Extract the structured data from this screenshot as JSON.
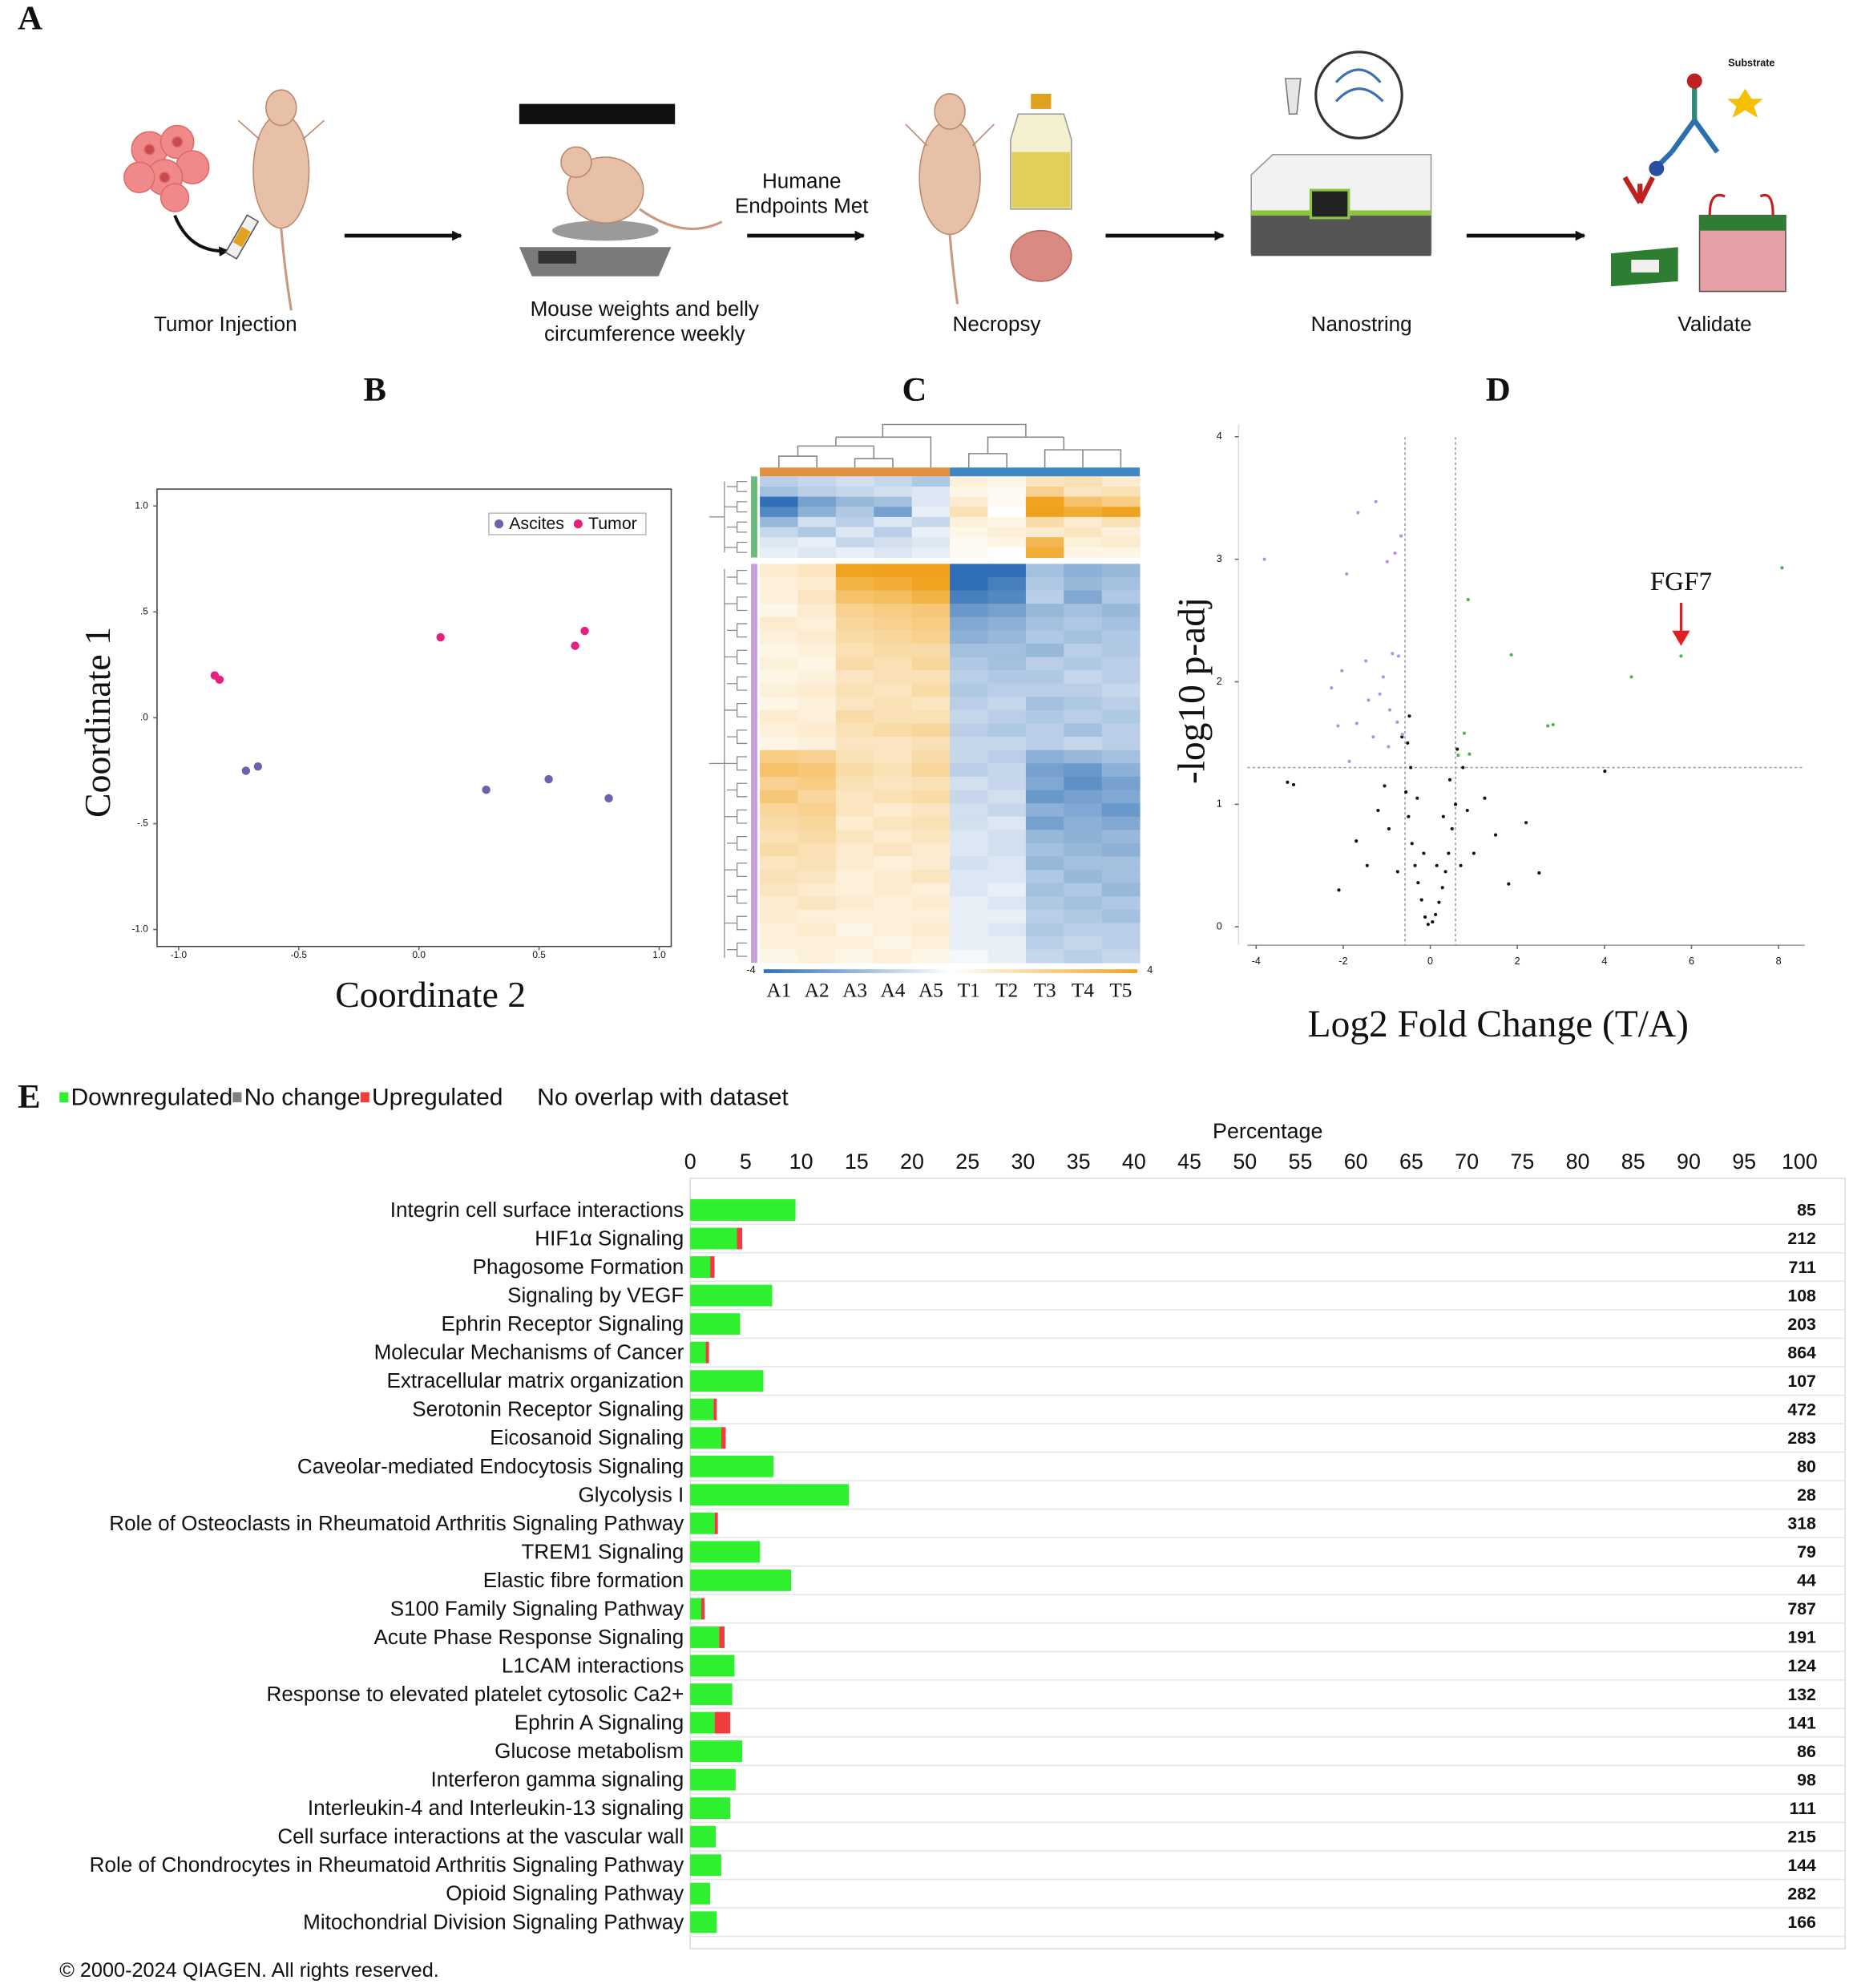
{
  "panel_labels": [
    "A",
    "B",
    "C",
    "D",
    "E"
  ],
  "workflow": {
    "steps": [
      [
        "Tumor Injection"
      ],
      [
        "Mouse weights and belly",
        "circumference weekly"
      ],
      [
        "Necropsy"
      ],
      [
        "Nanostring"
      ],
      [
        "Validate"
      ]
    ],
    "arrow_label": [
      "Humane",
      "Endpoints Met"
    ],
    "substrate_label": "Substrate"
  },
  "chart_data": [
    {
      "type": "scatter",
      "xlabel": "Coordinate 2",
      "ylabel": "Coordinate 1",
      "xlim": [
        -1.09,
        1.05
      ],
      "ylim": [
        -1.08,
        1.08
      ],
      "xticks": [
        {
          "value": -1.0,
          "label": "-1.0"
        },
        {
          "value": -0.5,
          "label": "-0.5"
        },
        {
          "value": 0.0,
          "label": "0.0"
        },
        {
          "value": 0.5,
          "label": "0.5"
        },
        {
          "value": 1.0,
          "label": "1.0"
        }
      ],
      "yticks": [
        {
          "value": 1.0,
          "label": "1.0"
        },
        {
          "value": 0.5,
          "label": ".5"
        },
        {
          "value": 0.0,
          "label": ".0"
        },
        {
          "value": -0.5,
          "label": "-.5"
        },
        {
          "value": -1.0,
          "label": "-1.0"
        }
      ],
      "frame": true,
      "legend": "upper right",
      "series": [
        {
          "name": "Ascites",
          "color": "#6f5fae",
          "x": [
            -0.72,
            -0.67,
            0.28,
            0.54,
            0.79
          ],
          "values": [
            -0.25,
            -0.23,
            -0.34,
            -0.29,
            -0.38
          ]
        },
        {
          "name": "Tumor",
          "color": "#e6207e",
          "x": [
            -0.85,
            -0.83,
            0.09,
            0.65,
            0.69
          ],
          "values": [
            0.2,
            0.18,
            0.38,
            0.34,
            0.41
          ]
        }
      ]
    },
    {
      "type": "heatmap",
      "column_groups": [
        {
          "color": "#df9040",
          "columns": [
            "A1",
            "A2",
            "A3",
            "A4",
            "A5"
          ]
        },
        {
          "color": "#3f86c4",
          "columns": [
            "T1",
            "T2",
            "T3",
            "T4",
            "T5"
          ]
        }
      ],
      "clim": [
        -4,
        4
      ],
      "cticks": [
        -4,
        4
      ],
      "colors": {
        "low": "#2f6fb5",
        "high": "#f0a21e"
      },
      "row_groups": [
        {
          "color": "#6dbb7c",
          "values": [
            [
              -0.6,
              -0.5,
              -0.4,
              -0.5,
              -0.7,
              0.3,
              0.2,
              0.5,
              0.6,
              0.4
            ],
            [
              -0.8,
              -0.6,
              -0.5,
              -0.4,
              -0.3,
              0.2,
              0.1,
              0.9,
              0.5,
              0.6
            ],
            [
              -2.0,
              -1.2,
              -0.9,
              -0.8,
              -0.3,
              0.4,
              0.1,
              1.8,
              1.2,
              1.0
            ],
            [
              -1.5,
              -1.0,
              -0.7,
              -1.2,
              -0.2,
              0.6,
              0.0,
              2.2,
              1.6,
              1.8
            ],
            [
              -0.9,
              -0.4,
              -0.6,
              -0.3,
              -0.5,
              0.3,
              0.2,
              0.7,
              0.4,
              0.6
            ],
            [
              -0.5,
              -0.7,
              -0.3,
              -0.6,
              -0.2,
              0.2,
              0.3,
              0.4,
              0.5,
              0.3
            ],
            [
              -0.3,
              -0.2,
              -0.5,
              -0.4,
              -0.3,
              0.1,
              0.2,
              1.4,
              0.3,
              0.4
            ],
            [
              -0.2,
              -0.3,
              -0.2,
              -0.3,
              -0.2,
              0.1,
              0.0,
              1.6,
              0.2,
              0.2
            ]
          ]
        },
        {
          "color": "#c7a0dc",
          "values": [
            [
              0.4,
              0.5,
              1.8,
              1.9,
              2.1,
              -2.2,
              -1.8,
              -0.8,
              -1.0,
              -0.9
            ],
            [
              0.3,
              0.4,
              1.5,
              1.6,
              1.8,
              -2.0,
              -1.6,
              -0.7,
              -0.9,
              -0.8
            ],
            [
              0.3,
              0.5,
              1.2,
              1.3,
              1.5,
              -1.6,
              -1.5,
              -0.6,
              -1.1,
              -0.7
            ],
            [
              0.2,
              0.4,
              0.9,
              1.0,
              1.1,
              -1.3,
              -1.2,
              -0.9,
              -0.8,
              -0.9
            ],
            [
              0.4,
              0.3,
              0.8,
              0.9,
              1.0,
              -1.1,
              -1.0,
              -0.8,
              -0.7,
              -0.8
            ],
            [
              0.3,
              0.4,
              0.7,
              0.8,
              0.9,
              -1.0,
              -0.9,
              -0.7,
              -0.8,
              -0.7
            ],
            [
              0.2,
              0.3,
              0.6,
              0.7,
              0.7,
              -0.8,
              -0.8,
              -0.9,
              -0.6,
              -0.7
            ],
            [
              0.3,
              0.2,
              0.7,
              0.6,
              0.8,
              -0.7,
              -0.8,
              -0.6,
              -0.7,
              -0.6
            ],
            [
              0.2,
              0.3,
              0.5,
              0.6,
              0.6,
              -0.6,
              -0.7,
              -0.7,
              -0.5,
              -0.6
            ],
            [
              0.3,
              0.4,
              0.6,
              0.5,
              0.7,
              -0.7,
              -0.6,
              -0.6,
              -0.6,
              -0.5
            ],
            [
              0.2,
              0.3,
              0.5,
              0.6,
              0.5,
              -0.6,
              -0.5,
              -0.8,
              -0.7,
              -0.6
            ],
            [
              0.4,
              0.3,
              0.7,
              0.6,
              0.6,
              -0.5,
              -0.6,
              -0.7,
              -0.6,
              -0.7
            ],
            [
              0.3,
              0.4,
              0.6,
              0.7,
              0.8,
              -0.6,
              -0.7,
              -0.6,
              -0.8,
              -0.6
            ],
            [
              0.2,
              0.3,
              0.5,
              0.5,
              0.6,
              -0.5,
              -0.5,
              -0.6,
              -0.5,
              -0.6
            ],
            [
              1.0,
              0.9,
              0.6,
              0.5,
              0.7,
              -0.5,
              -0.6,
              -1.0,
              -0.9,
              -0.8
            ],
            [
              1.2,
              1.1,
              0.7,
              0.6,
              0.8,
              -0.6,
              -0.5,
              -1.2,
              -1.3,
              -1.0
            ],
            [
              0.9,
              1.0,
              0.6,
              0.5,
              0.6,
              -0.4,
              -0.5,
              -1.1,
              -1.4,
              -1.2
            ],
            [
              1.1,
              0.8,
              0.5,
              0.6,
              0.7,
              -0.5,
              -0.4,
              -1.3,
              -1.2,
              -1.1
            ],
            [
              0.8,
              0.9,
              0.5,
              0.4,
              0.5,
              -0.4,
              -0.5,
              -1.0,
              -1.1,
              -1.3
            ],
            [
              0.7,
              0.8,
              0.4,
              0.5,
              0.6,
              -0.4,
              -0.3,
              -1.2,
              -1.0,
              -1.1
            ],
            [
              0.6,
              0.7,
              0.5,
              0.4,
              0.5,
              -0.3,
              -0.4,
              -0.9,
              -1.0,
              -0.9
            ],
            [
              0.7,
              0.6,
              0.4,
              0.5,
              0.4,
              -0.3,
              -0.4,
              -0.8,
              -0.9,
              -1.0
            ],
            [
              0.5,
              0.6,
              0.4,
              0.3,
              0.4,
              -0.4,
              -0.3,
              -0.9,
              -0.8,
              -0.8
            ],
            [
              0.6,
              0.5,
              0.3,
              0.4,
              0.5,
              -0.3,
              -0.3,
              -0.7,
              -0.9,
              -0.8
            ],
            [
              0.5,
              0.4,
              0.3,
              0.4,
              0.3,
              -0.3,
              -0.2,
              -0.8,
              -0.7,
              -0.9
            ],
            [
              0.4,
              0.5,
              0.4,
              0.3,
              0.4,
              -0.2,
              -0.3,
              -0.7,
              -0.8,
              -0.7
            ],
            [
              0.4,
              0.3,
              0.3,
              0.3,
              0.3,
              -0.2,
              -0.2,
              -0.6,
              -0.7,
              -0.8
            ],
            [
              0.3,
              0.4,
              0.2,
              0.3,
              0.4,
              -0.2,
              -0.3,
              -0.7,
              -0.6,
              -0.6
            ],
            [
              0.3,
              0.3,
              0.3,
              0.2,
              0.3,
              -0.2,
              -0.2,
              -0.6,
              -0.5,
              -0.6
            ],
            [
              0.2,
              0.3,
              0.2,
              0.3,
              0.2,
              -0.1,
              -0.2,
              -0.5,
              -0.6,
              -0.5
            ]
          ]
        }
      ]
    },
    {
      "type": "scatter",
      "xlabel": "Log2 Fold Change (T/A)",
      "ylabel": "-log10 p-adj",
      "xlim": [
        -4.2,
        8.6
      ],
      "ylim": [
        -0.15,
        4.1
      ],
      "xticks": [
        -4,
        -2,
        0,
        2,
        4,
        6,
        8
      ],
      "yticks": [
        0,
        1,
        2,
        3,
        4
      ],
      "frame": false,
      "xthresholds": [
        -0.58,
        0.58
      ],
      "ythresholds": [
        1.3
      ],
      "series": [
        {
          "color": "#111111",
          "x": [
            -0.05,
            0.05,
            0.12,
            -0.12,
            0.2,
            -0.2,
            0.28,
            -0.28,
            0.35,
            -0.35,
            0.42,
            -0.42,
            0.5,
            -0.5,
            0.58,
            -0.56,
            -0.45,
            -0.52,
            -0.48,
            -0.3,
            -0.15,
            0.15,
            0.3,
            0.45,
            0.7,
            0.85,
            1.0,
            1.25,
            1.5,
            1.8,
            2.2,
            0.75,
            -0.75,
            -0.95,
            -1.2,
            -1.45,
            -1.7,
            -2.1,
            -3.28,
            -3.14,
            4.01,
            2.5,
            -0.65,
            0.62,
            -1.05
          ],
          "values": [
            0.02,
            0.04,
            0.1,
            0.08,
            0.2,
            0.22,
            0.32,
            0.36,
            0.45,
            0.5,
            0.6,
            0.68,
            0.8,
            0.9,
            1.0,
            1.1,
            1.3,
            1.5,
            1.72,
            1.05,
            0.6,
            0.5,
            0.9,
            1.2,
            0.5,
            0.95,
            0.6,
            1.05,
            0.75,
            0.35,
            0.85,
            1.3,
            0.45,
            0.8,
            0.95,
            0.5,
            0.7,
            0.3,
            1.18,
            1.16,
            1.27,
            0.44,
            1.55,
            1.45,
            1.15
          ]
        },
        {
          "color": "#b98ee0",
          "x": [
            -3.81,
            -1.66,
            -1.25,
            -1.92,
            -0.99,
            -0.67,
            -0.81,
            -2.27,
            -2.03,
            -1.48,
            -0.87,
            -0.73,
            -1.16,
            -0.93,
            -0.76,
            -2.12,
            -1.69,
            -1.42,
            -1.08,
            -0.64,
            -1.86,
            -0.96,
            -1.31
          ],
          "values": [
            3.0,
            3.38,
            3.47,
            2.88,
            2.98,
            3.19,
            3.05,
            1.95,
            2.09,
            2.17,
            2.23,
            2.21,
            1.9,
            1.77,
            1.67,
            1.64,
            1.66,
            1.85,
            2.04,
            1.57,
            1.35,
            1.47,
            1.55
          ]
        },
        {
          "color": "#4caf5a",
          "x": [
            0.87,
            1.86,
            4.62,
            5.76,
            8.08,
            2.7,
            2.82,
            0.78,
            0.64,
            0.9
          ],
          "values": [
            2.67,
            2.22,
            2.04,
            2.21,
            2.93,
            1.64,
            1.65,
            1.58,
            1.4,
            1.41
          ]
        }
      ],
      "annotation": {
        "text": "FGF7",
        "x": 5.76,
        "y": 2.21,
        "color": "#e02020"
      }
    },
    {
      "type": "bar",
      "orientation": "horizontal",
      "xlabel": "Percentage",
      "xlim": [
        0,
        100
      ],
      "xticks": [
        0,
        5,
        10,
        15,
        20,
        25,
        30,
        35,
        40,
        45,
        50,
        55,
        60,
        65,
        70,
        75,
        80,
        85,
        90,
        95,
        100
      ],
      "categories": [
        "Integrin cell surface interactions",
        "HIF1α Signaling",
        "Phagosome Formation",
        "Signaling by VEGF",
        "Ephrin Receptor Signaling",
        "Molecular Mechanisms of Cancer",
        "Extracellular matrix organization",
        "Serotonin Receptor Signaling",
        "Eicosanoid Signaling",
        "Caveolar-mediated Endocytosis Signaling",
        "Glycolysis I",
        "Role of Osteoclasts in Rheumatoid Arthritis Signaling Pathway",
        "TREM1 Signaling",
        "Elastic fibre formation",
        "S100 Family Signaling Pathway",
        "Acute Phase Response Signaling",
        "L1CAM interactions",
        "Response to elevated platelet cytosolic Ca2+",
        "Ephrin A Signaling",
        "Glucose metabolism",
        "Interferon gamma signaling",
        "Interleukin-4 and Interleukin-13 signaling",
        "Cell surface interactions at the vascular wall",
        "Role of Chondrocytes in Rheumatoid Arthritis Signaling Pathway",
        "Opioid Signaling Pathway",
        "Mitochondrial Division Signaling Pathway"
      ],
      "series": [
        {
          "name": "Downregulated",
          "color": "#2ef02e",
          "values": [
            9.5,
            4.2,
            1.8,
            7.4,
            4.5,
            1.4,
            6.6,
            2.1,
            2.8,
            7.5,
            14.3,
            2.2,
            6.3,
            9.1,
            1.0,
            2.6,
            4.0,
            3.8,
            2.2,
            4.7,
            4.1,
            3.6,
            2.3,
            2.8,
            1.8,
            2.4
          ]
        },
        {
          "name": "No change",
          "color": "#808080",
          "values": [
            0,
            0,
            0,
            0,
            0,
            0,
            0,
            0,
            0,
            0,
            0,
            0,
            0,
            0,
            0,
            0,
            0,
            0,
            0,
            0,
            0,
            0,
            0,
            0,
            0,
            0
          ]
        },
        {
          "name": "Upregulated",
          "color": "#f03c3c",
          "values": [
            0,
            0.5,
            0.4,
            0,
            0,
            0.3,
            0,
            0.3,
            0.4,
            0,
            0,
            0.3,
            0,
            0,
            0.3,
            0.5,
            0,
            0,
            1.4,
            0,
            0,
            0,
            0,
            0,
            0,
            0
          ]
        },
        {
          "name": "No overlap with dataset",
          "color": "#ffffff",
          "values": [
            90.5,
            95.3,
            97.8,
            92.6,
            95.5,
            98.3,
            93.4,
            97.6,
            96.8,
            92.5,
            85.7,
            97.5,
            93.7,
            90.9,
            98.7,
            96.9,
            96.0,
            96.2,
            96.4,
            95.3,
            95.9,
            96.4,
            97.7,
            97.2,
            98.2,
            97.6
          ]
        }
      ],
      "totals": [
        85,
        212,
        711,
        108,
        203,
        864,
        107,
        472,
        283,
        80,
        28,
        318,
        79,
        44,
        787,
        191,
        124,
        132,
        141,
        86,
        98,
        111,
        215,
        144,
        282,
        166
      ],
      "source": "© 2000-2024 QIAGEN. All rights reserved."
    }
  ]
}
